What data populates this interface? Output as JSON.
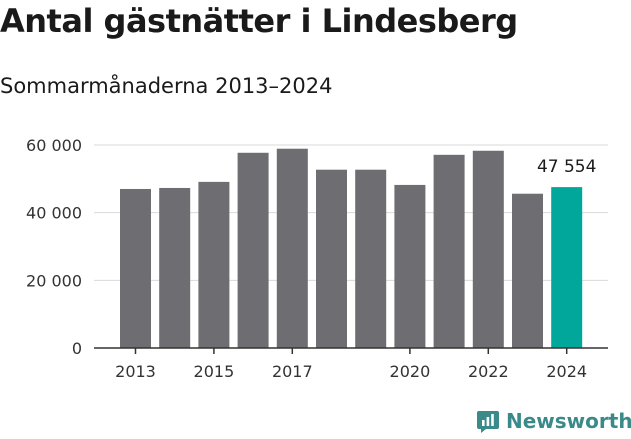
{
  "title": "Antal gästnätter i Lindesberg",
  "subtitle": "Sommarmånaderna 2013–2024",
  "brand": {
    "name": "Newsworthy",
    "icon": "newsworthy-logo-icon"
  },
  "colors": {
    "bar": "#6e6d72",
    "highlight": "#00a79a",
    "grid": "#d9d9d9",
    "axis": "#333333",
    "brand": "#3a8a8a"
  },
  "chart_data": {
    "type": "bar",
    "title": "Antal gästnätter i Lindesberg",
    "subtitle": "Sommarmånaderna 2013–2024",
    "categories": [
      "2013",
      "2014",
      "2015",
      "2016",
      "2017",
      "2018",
      "2019",
      "2020",
      "2021",
      "2022",
      "2023",
      "2024"
    ],
    "values": [
      47000,
      47300,
      49100,
      57700,
      58900,
      52700,
      52700,
      48200,
      57100,
      58300,
      45600,
      47554
    ],
    "highlight_index": 11,
    "data_labels": [
      {
        "index": 11,
        "text": "47 554"
      }
    ],
    "ylim": [
      0,
      60000
    ],
    "yticks": [
      0,
      20000,
      40000,
      60000
    ],
    "ytick_labels": [
      "0",
      "20 000",
      "40 000",
      "60 000"
    ],
    "xtick_labels": [
      "2013",
      "2015",
      "2017",
      "2020",
      "2022",
      "2024"
    ],
    "xlabel": "",
    "ylabel": "",
    "grid": true,
    "legend": "none"
  }
}
